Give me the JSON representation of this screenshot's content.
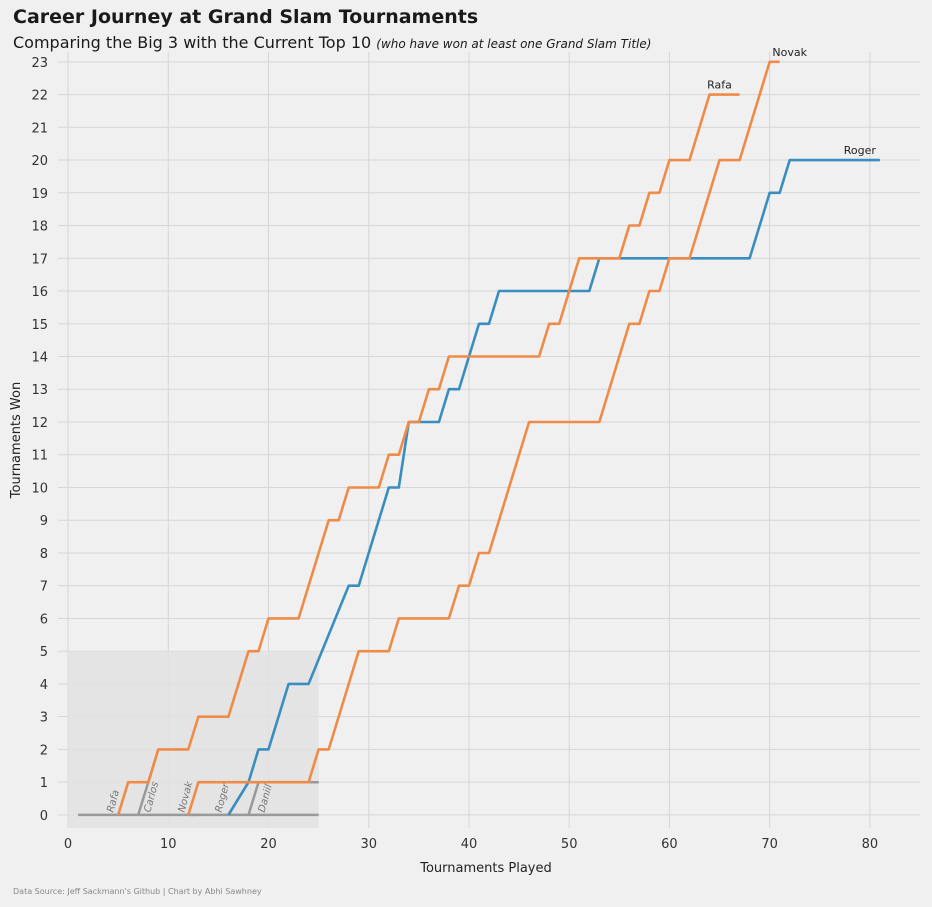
{
  "title": "Career Journey at Grand Slam Tournaments",
  "subtitle": "Comparing the Big 3 with the Current Top 10",
  "subtitle_note": "(who have won at least one Grand Slam Title)",
  "source": "Data Source: Jeff Sackmann's Github | Chart by Abhi Sawhney",
  "colors": {
    "roger": "#3a8ebf",
    "orange": "#ef8a47",
    "inset": "#999999",
    "grid": "#d6d6d6"
  },
  "chart_data": {
    "type": "line",
    "xlabel": "Tournaments Played",
    "ylabel": "Tournaments Won",
    "xlim": [
      -3,
      85
    ],
    "ylim": [
      -0.4,
      23.3
    ],
    "xticks": [
      0,
      10,
      20,
      30,
      40,
      50,
      60,
      70,
      80
    ],
    "yticks": [
      0,
      1,
      2,
      3,
      4,
      5,
      6,
      7,
      8,
      9,
      10,
      11,
      12,
      13,
      14,
      15,
      16,
      17,
      18,
      19,
      20,
      21,
      22,
      23
    ],
    "grid": true,
    "series": [
      {
        "name": "Roger",
        "color": "#3a8ebf",
        "points": [
          [
            16,
            0
          ],
          [
            18,
            1
          ],
          [
            19,
            2
          ],
          [
            20,
            2
          ],
          [
            22,
            4
          ],
          [
            24,
            4
          ],
          [
            28,
            7
          ],
          [
            29,
            7
          ],
          [
            32,
            10
          ],
          [
            33,
            10
          ],
          [
            34,
            12
          ],
          [
            37,
            12
          ],
          [
            38,
            13
          ],
          [
            39,
            13
          ],
          [
            41,
            15
          ],
          [
            42,
            15
          ],
          [
            43,
            16
          ],
          [
            52,
            16
          ],
          [
            53,
            17
          ],
          [
            68,
            17
          ],
          [
            70,
            19
          ],
          [
            71,
            19
          ],
          [
            72,
            20
          ],
          [
            81,
            20
          ]
        ]
      },
      {
        "name": "Rafa",
        "color": "#ef8a47",
        "points": [
          [
            5,
            0
          ],
          [
            6,
            1
          ],
          [
            8,
            1
          ],
          [
            9,
            2
          ],
          [
            12,
            2
          ],
          [
            13,
            3
          ],
          [
            16,
            3
          ],
          [
            18,
            5
          ],
          [
            19,
            5
          ],
          [
            20,
            6
          ],
          [
            23,
            6
          ],
          [
            26,
            9
          ],
          [
            27,
            9
          ],
          [
            28,
            10
          ],
          [
            31,
            10
          ],
          [
            32,
            11
          ],
          [
            33,
            11
          ],
          [
            34,
            12
          ],
          [
            35,
            12
          ],
          [
            36,
            13
          ],
          [
            37,
            13
          ],
          [
            38,
            14
          ],
          [
            47,
            14
          ],
          [
            48,
            15
          ],
          [
            49,
            15
          ],
          [
            50,
            16
          ],
          [
            51,
            17
          ],
          [
            55,
            17
          ],
          [
            56,
            18
          ],
          [
            57,
            18
          ],
          [
            58,
            19
          ],
          [
            59,
            19
          ],
          [
            60,
            20
          ],
          [
            62,
            20
          ],
          [
            64,
            22
          ],
          [
            67,
            22
          ]
        ]
      },
      {
        "name": "Novak",
        "color": "#ef8a47",
        "points": [
          [
            12,
            0
          ],
          [
            13,
            1
          ],
          [
            24,
            1
          ],
          [
            25,
            2
          ],
          [
            26,
            2
          ],
          [
            29,
            5
          ],
          [
            32,
            5
          ],
          [
            33,
            6
          ],
          [
            38,
            6
          ],
          [
            39,
            7
          ],
          [
            40,
            7
          ],
          [
            41,
            8
          ],
          [
            42,
            8
          ],
          [
            46,
            12
          ],
          [
            53,
            12
          ],
          [
            56,
            15
          ],
          [
            57,
            15
          ],
          [
            58,
            16
          ],
          [
            59,
            16
          ],
          [
            60,
            17
          ],
          [
            62,
            17
          ],
          [
            65,
            20
          ],
          [
            67,
            20
          ],
          [
            70,
            23
          ],
          [
            71,
            23
          ]
        ]
      }
    ],
    "inset": {
      "xrange": [
        0,
        25
      ],
      "yrange": [
        0,
        5
      ],
      "color": "#999999",
      "series": [
        {
          "name": "Rafa",
          "points": [
            [
              1,
              0
            ],
            [
              25,
              0
            ]
          ]
        },
        {
          "name": "Carlos",
          "points": [
            [
              7,
              0
            ],
            [
              8,
              1
            ],
            [
              9,
              2
            ]
          ]
        },
        {
          "name": "Novak",
          "points": [
            [
              12,
              0
            ],
            [
              13,
              0
            ]
          ]
        },
        {
          "name": "Roger",
          "points": [
            [
              16,
              0
            ],
            [
              18,
              1
            ],
            [
              25,
              1
            ]
          ]
        },
        {
          "name": "Daniil",
          "points": [
            [
              18,
              0
            ],
            [
              19,
              1
            ],
            [
              25,
              1
            ]
          ]
        }
      ],
      "labels": [
        {
          "text": "Rafa",
          "x": 4.5,
          "y": 0
        },
        {
          "text": "Carlos",
          "x": 8.2,
          "y": 0
        },
        {
          "text": "Novak",
          "x": 11.6,
          "y": 0
        },
        {
          "text": "Roger",
          "x": 15.3,
          "y": 0
        },
        {
          "text": "Daniil",
          "x": 19.6,
          "y": 0
        }
      ]
    },
    "end_labels": [
      {
        "text": "Novak",
        "x": 72,
        "y": 23
      },
      {
        "text": "Rafa",
        "x": 65,
        "y": 22
      },
      {
        "text": "Roger",
        "x": 79,
        "y": 20
      }
    ]
  }
}
